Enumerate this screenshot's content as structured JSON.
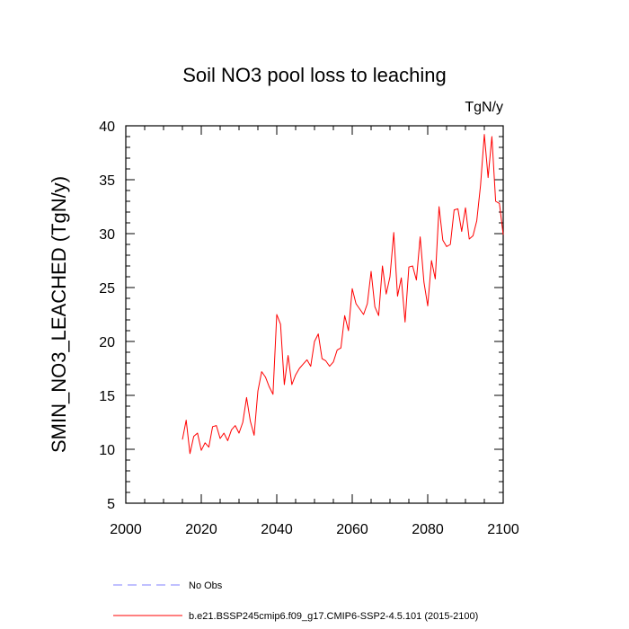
{
  "chart_data": {
    "type": "line",
    "title": "Soil NO3 pool loss to leaching",
    "units": "TgN/y",
    "ylabel": "SMIN_NO3_LEACHED  (TgN/y)",
    "xlabel": "",
    "xlim": [
      2000,
      2100
    ],
    "ylim": [
      5,
      40
    ],
    "x_ticks": [
      2000,
      2020,
      2040,
      2060,
      2080,
      2100
    ],
    "x_tick_labels": [
      "2000",
      "2020",
      "2040",
      "2060",
      "2080",
      "2100"
    ],
    "y_ticks": [
      5,
      10,
      15,
      20,
      25,
      30,
      35,
      40
    ],
    "y_tick_labels": [
      "5",
      "10",
      "15",
      "20",
      "25",
      "30",
      "35",
      "40"
    ],
    "grid": false,
    "series": [
      {
        "name": "b.e21.BSSP245cmip6.f09_g17.CMIP6-SSP2-4.5.101 (2015-2100)",
        "color": "#ff0000",
        "style": "solid",
        "x": [
          2015,
          2016,
          2017,
          2018,
          2019,
          2020,
          2021,
          2022,
          2023,
          2024,
          2025,
          2026,
          2027,
          2028,
          2029,
          2030,
          2031,
          2032,
          2033,
          2034,
          2035,
          2036,
          2037,
          2038,
          2039,
          2040,
          2041,
          2042,
          2043,
          2044,
          2045,
          2046,
          2047,
          2048,
          2049,
          2050,
          2051,
          2052,
          2053,
          2054,
          2055,
          2056,
          2057,
          2058,
          2059,
          2060,
          2061,
          2062,
          2063,
          2064,
          2065,
          2066,
          2067,
          2068,
          2069,
          2070,
          2071,
          2072,
          2073,
          2074,
          2075,
          2076,
          2077,
          2078,
          2079,
          2080,
          2081,
          2082,
          2083,
          2084,
          2085,
          2086,
          2087,
          2088,
          2089,
          2090,
          2091,
          2092,
          2093,
          2094,
          2095,
          2096,
          2097,
          2098,
          2099,
          2100
        ],
        "values": [
          10.9,
          12.7,
          9.6,
          11.2,
          11.5,
          9.9,
          10.6,
          10.2,
          12.1,
          12.2,
          11.0,
          11.5,
          10.8,
          11.8,
          12.2,
          11.5,
          12.5,
          14.8,
          12.6,
          11.3,
          15.4,
          17.2,
          16.7,
          15.8,
          15.1,
          22.5,
          21.6,
          16.0,
          18.7,
          16.0,
          16.9,
          17.5,
          17.9,
          18.3,
          17.7,
          20.0,
          20.7,
          18.4,
          18.2,
          17.7,
          18.1,
          19.2,
          19.4,
          22.4,
          21.0,
          24.9,
          23.5,
          23.0,
          22.5,
          23.5,
          26.5,
          23.2,
          22.4,
          27.0,
          24.4,
          26.0,
          30.1,
          24.2,
          25.9,
          21.8,
          26.9,
          27.0,
          25.7,
          29.7,
          25.5,
          23.3,
          27.5,
          25.8,
          32.5,
          29.4,
          28.8,
          29.0,
          32.2,
          32.3,
          30.2,
          32.4,
          29.5,
          29.8,
          31.2,
          34.5,
          39.2,
          35.2,
          39.0,
          33.0,
          32.8,
          29.9
        ]
      },
      {
        "name": "No Obs",
        "color": "#8080ff",
        "style": "dashed",
        "x": [],
        "values": []
      }
    ]
  }
}
